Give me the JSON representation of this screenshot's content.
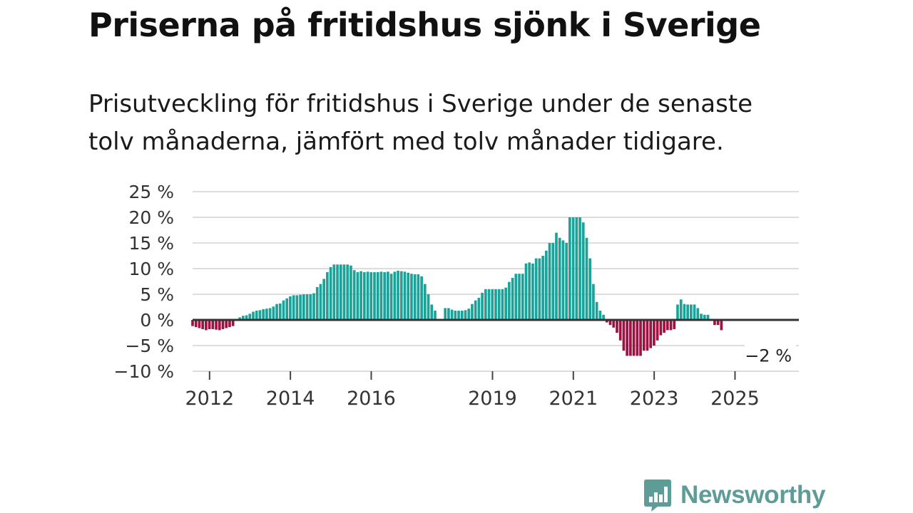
{
  "title": "Priserna på fritidshus sjönk i Sverige",
  "subtitle_lines": [
    "Prisutveckling för fritidshus i Sverige under de senaste",
    "tolv månaderna, jämfört med tolv månader tidigare."
  ],
  "brand": {
    "name": "Newsworthy",
    "icon": "bar-chart-speech-bubble-icon"
  },
  "colors": {
    "positive": "#1ba39a",
    "negative": "#9e1242",
    "grid": "#dddddd",
    "zero_line": "#333333",
    "brand": "#5e9c98"
  },
  "chart_data": {
    "type": "bar",
    "title": "Priserna på fritidshus sjönk i Sverige",
    "xlabel": "",
    "ylabel": "",
    "ylim": [
      -10,
      25
    ],
    "y_ticks": [
      25,
      20,
      15,
      10,
      5,
      0,
      -5,
      -10
    ],
    "y_tick_labels": [
      "25 %",
      "20 %",
      "15 %",
      "10 %",
      "5 %",
      "0 %",
      "−5 %",
      "−10 %"
    ],
    "x_ticks": [
      2012,
      2014,
      2016,
      2019,
      2021,
      2023,
      2025
    ],
    "x_tick_labels": [
      "2012",
      "2014",
      "2016",
      "2019",
      "2021",
      "2023",
      "2025"
    ],
    "start": 2011.58,
    "step": 0.08333,
    "values": [
      -1.2,
      -1.4,
      -1.6,
      -1.8,
      -2,
      -1.8,
      -1.8,
      -1.9,
      -2,
      -1.8,
      -1.6,
      -1.4,
      -1.2,
      0.2,
      0.5,
      0.8,
      0.9,
      1.2,
      1.6,
      1.8,
      1.9,
      2.1,
      2.2,
      2.3,
      2.6,
      3.1,
      3.2,
      3.8,
      4.2,
      4.6,
      4.8,
      4.8,
      4.9,
      5,
      5,
      5,
      5.2,
      6.4,
      7,
      8,
      9.3,
      10.3,
      10.8,
      10.8,
      10.8,
      10.8,
      10.8,
      10.6,
      9.7,
      9.3,
      9.5,
      9.3,
      9.4,
      9.3,
      9.3,
      9.3,
      9.4,
      9.3,
      9.4,
      9,
      9.4,
      9.6,
      9.5,
      9.4,
      9.2,
      9,
      8.9,
      8.9,
      8.5,
      7,
      5,
      3,
      1.8,
      null,
      null,
      2.3,
      2.3,
      2,
      1.8,
      1.8,
      1.8,
      1.9,
      2.2,
      3.1,
      3.8,
      4.3,
      5.3,
      6,
      6,
      6,
      6,
      6,
      6,
      6.3,
      7.4,
      8.2,
      9,
      9,
      9,
      11,
      11.2,
      11,
      12,
      12,
      12.5,
      13.5,
      15,
      15,
      17,
      16,
      15.5,
      15,
      20,
      20,
      20,
      20,
      19,
      16,
      12,
      7,
      3.5,
      1.8,
      1,
      -0.5,
      -1,
      -1.5,
      -2.5,
      -4,
      -6,
      -7,
      -7,
      -7,
      -7,
      -7,
      -6,
      -6,
      -5.5,
      -5,
      -4,
      -3,
      -2.5,
      -2,
      -2,
      -1.8,
      3,
      4,
      3.1,
      3,
      3,
      3,
      2.3,
      1.2,
      1,
      1,
      null,
      -1,
      -1,
      -2
    ],
    "last_value_label": "−2 %"
  }
}
